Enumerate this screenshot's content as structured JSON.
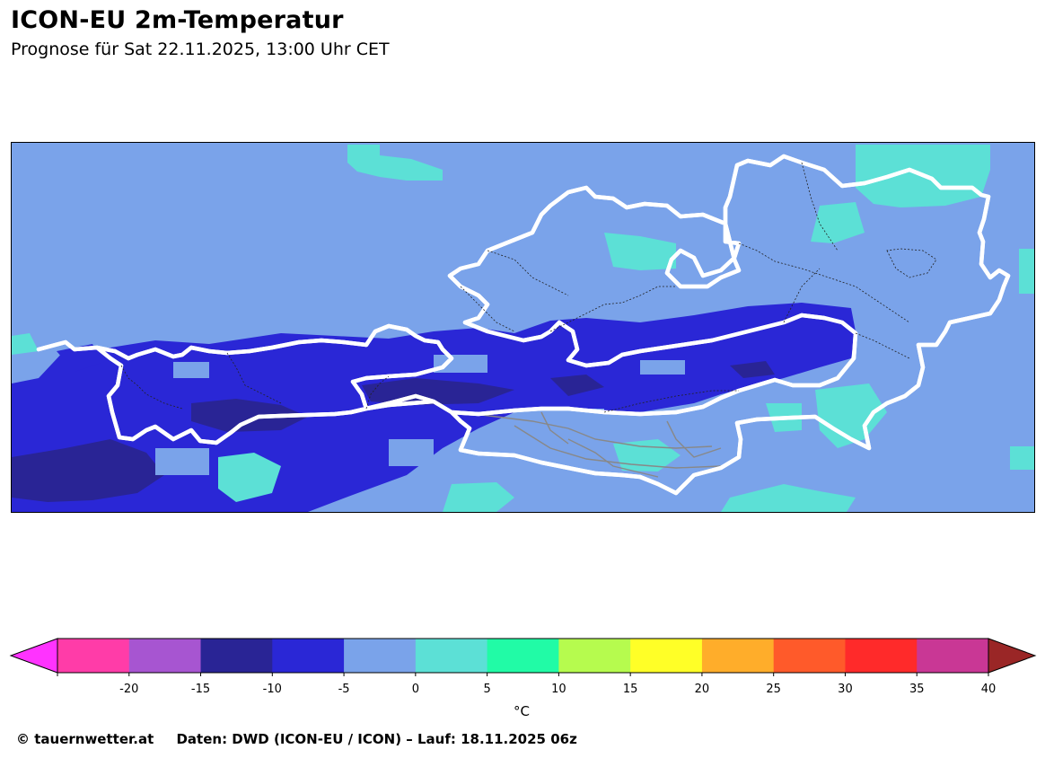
{
  "header": {
    "title": "ICON-EU 2m-Temperatur",
    "subtitle": "Prognose für Sat 22.11.2025, 13:00 Uhr CET"
  },
  "map": {
    "region": "Austria",
    "field": "2m temperature",
    "colors": {
      "background_0_to_-5": "#7aa3ea",
      "range_-5_to_-10": "#2a27d6",
      "range_-10_to_-15": "#292495",
      "range_0_to_5": "#5ce0d6",
      "border": "#000000",
      "border_halo": "#ffffff",
      "rivers": "#888888"
    }
  },
  "colorbar": {
    "unit": "°C",
    "ticks": [
      "-20",
      "-15",
      "-10",
      "-5",
      "0",
      "5",
      "10",
      "15",
      "20",
      "25",
      "30",
      "35",
      "40"
    ],
    "colors": [
      "#ff33ff",
      "#ff3ca8",
      "#a755d1",
      "#292495",
      "#2a27d6",
      "#7aa3ea",
      "#5ce0d6",
      "#21fba6",
      "#b6fb4e",
      "#ffff27",
      "#ffad2a",
      "#ff5a2a",
      "#ff2a2a",
      "#c93795",
      "#9a2626"
    ]
  },
  "footer": {
    "copyright": "© tauernwetter.at",
    "data_source": "Daten: DWD (ICON-EU / ICON) – Lauf: 18.11.2025 06z"
  }
}
